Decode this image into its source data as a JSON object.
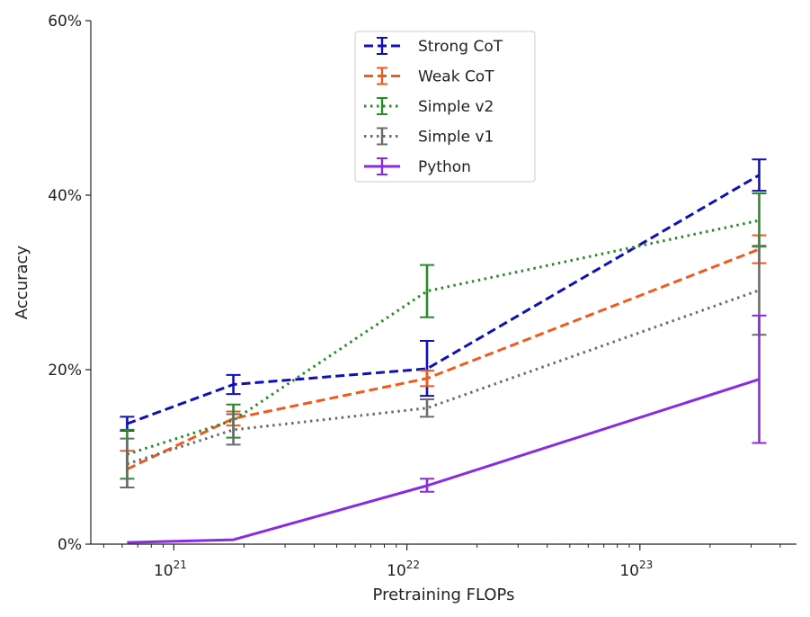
{
  "chart_data": {
    "type": "line",
    "title": "",
    "xlabel": "Pretraining FLOPs",
    "ylabel": "Accuracy",
    "xscale": "log",
    "xlim": [
      4.4e+20,
      4.7e+23
    ],
    "ylim": [
      0,
      60
    ],
    "yticks": [
      {
        "value": 0,
        "label": "0%"
      },
      {
        "value": 20,
        "label": "20%"
      },
      {
        "value": 40,
        "label": "40%"
      },
      {
        "value": 60,
        "label": "60%"
      }
    ],
    "xticks": [
      {
        "value": 1e+21,
        "mantissa": "10",
        "exponent": "21"
      },
      {
        "value": 1e+22,
        "mantissa": "10",
        "exponent": "22"
      },
      {
        "value": 1e+23,
        "mantissa": "10",
        "exponent": "23"
      }
    ],
    "x": [
      6.3e+20,
      1.8e+21,
      1.22e+22,
      3.25e+23
    ],
    "legend_position": "top-center",
    "series": [
      {
        "name": "Strong CoT",
        "color": "#1010b8",
        "dash": "dashed",
        "values": [
          13.8,
          18.3,
          20.1,
          42.3
        ],
        "err_low": [
          13.0,
          17.2,
          17.0,
          40.5
        ],
        "err_high": [
          14.6,
          19.4,
          23.3,
          44.1
        ]
      },
      {
        "name": "Weak CoT",
        "color": "#f25a1d",
        "dash": "dashed",
        "values": [
          8.6,
          14.4,
          19.0,
          33.8
        ],
        "err_low": [
          6.5,
          13.6,
          18.1,
          32.2
        ],
        "err_high": [
          10.7,
          15.2,
          19.9,
          35.4
        ]
      },
      {
        "name": "Simple v2",
        "color": "#2a8a2a",
        "dash": "dotted",
        "values": [
          10.3,
          14.2,
          29.0,
          37.1
        ],
        "err_low": [
          7.5,
          12.2,
          26.0,
          34.1
        ],
        "err_high": [
          13.1,
          16.0,
          32.0,
          40.2
        ]
      },
      {
        "name": "Simple v1",
        "color": "#6b6b6b",
        "dash": "dotted",
        "values": [
          9.2,
          13.1,
          15.6,
          29.1
        ],
        "err_low": [
          6.5,
          11.4,
          14.6,
          24.0
        ],
        "err_high": [
          12.1,
          14.9,
          16.6,
          34.2
        ]
      },
      {
        "name": "Python",
        "color": "#8a2be2",
        "dash": "solid",
        "values": [
          0.2,
          0.5,
          6.7,
          18.9
        ],
        "err_low": [
          null,
          null,
          6.0,
          11.6
        ],
        "err_high": [
          null,
          null,
          7.5,
          26.2
        ]
      }
    ]
  }
}
